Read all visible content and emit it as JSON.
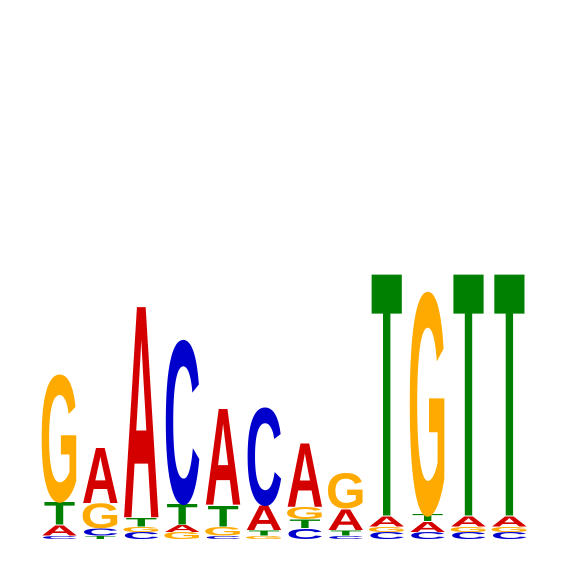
{
  "chart_data": {
    "type": "sequence_logo",
    "alphabet": [
      "A",
      "C",
      "G",
      "T"
    ],
    "colors": {
      "A": "#d40000",
      "C": "#0000cc",
      "G": "#ffaa00",
      "T": "#008000"
    },
    "ylim": [
      0,
      2
    ],
    "positions": [
      {
        "pos": 1,
        "letters": [
          {
            "l": "C",
            "h": 0.02
          },
          {
            "l": "A",
            "h": 0.06
          },
          {
            "l": "T",
            "h": 0.13
          },
          {
            "l": "G",
            "h": 0.73
          }
        ]
      },
      {
        "pos": 2,
        "letters": [
          {
            "l": "T",
            "h": 0.02
          },
          {
            "l": "C",
            "h": 0.04
          },
          {
            "l": "G",
            "h": 0.14
          },
          {
            "l": "A",
            "h": 0.32
          }
        ]
      },
      {
        "pos": 3,
        "letters": [
          {
            "l": "C",
            "h": 0.04
          },
          {
            "l": "G",
            "h": 0.03
          },
          {
            "l": "T",
            "h": 0.05
          },
          {
            "l": "A",
            "h": 1.23
          }
        ]
      },
      {
        "pos": 4,
        "letters": [
          {
            "l": "G",
            "h": 0.04
          },
          {
            "l": "A",
            "h": 0.04
          },
          {
            "l": "T",
            "h": 0.12
          },
          {
            "l": "C",
            "h": 0.94
          }
        ]
      },
      {
        "pos": 5,
        "letters": [
          {
            "l": "C",
            "h": 0.02
          },
          {
            "l": "G",
            "h": 0.05
          },
          {
            "l": "T",
            "h": 0.12
          },
          {
            "l": "A",
            "h": 0.56
          }
        ]
      },
      {
        "pos": 6,
        "letters": [
          {
            "l": "G",
            "h": 0.02
          },
          {
            "l": "T",
            "h": 0.03
          },
          {
            "l": "A",
            "h": 0.14
          },
          {
            "l": "C",
            "h": 0.56
          }
        ]
      },
      {
        "pos": 7,
        "letters": [
          {
            "l": "C",
            "h": 0.06
          },
          {
            "l": "T",
            "h": 0.05
          },
          {
            "l": "G",
            "h": 0.07
          },
          {
            "l": "A",
            "h": 0.37
          }
        ]
      },
      {
        "pos": 8,
        "letters": [
          {
            "l": "C",
            "h": 0.02
          },
          {
            "l": "T",
            "h": 0.03
          },
          {
            "l": "A",
            "h": 0.12
          },
          {
            "l": "G",
            "h": 0.2
          }
        ]
      },
      {
        "pos": 9,
        "letters": [
          {
            "l": "C",
            "h": 0.04
          },
          {
            "l": "G",
            "h": 0.03
          },
          {
            "l": "A",
            "h": 0.06
          },
          {
            "l": "T",
            "h": 1.41
          }
        ]
      },
      {
        "pos": 10,
        "letters": [
          {
            "l": "C",
            "h": 0.04
          },
          {
            "l": "A",
            "h": 0.06
          },
          {
            "l": "T",
            "h": 0.04
          },
          {
            "l": "G",
            "h": 1.28
          }
        ]
      },
      {
        "pos": 11,
        "letters": [
          {
            "l": "C",
            "h": 0.04
          },
          {
            "l": "G",
            "h": 0.03
          },
          {
            "l": "A",
            "h": 0.06
          },
          {
            "l": "T",
            "h": 1.41
          }
        ]
      },
      {
        "pos": 12,
        "letters": [
          {
            "l": "C",
            "h": 0.04
          },
          {
            "l": "G",
            "h": 0.03
          },
          {
            "l": "A",
            "h": 0.06
          },
          {
            "l": "T",
            "h": 1.41
          }
        ]
      }
    ]
  }
}
